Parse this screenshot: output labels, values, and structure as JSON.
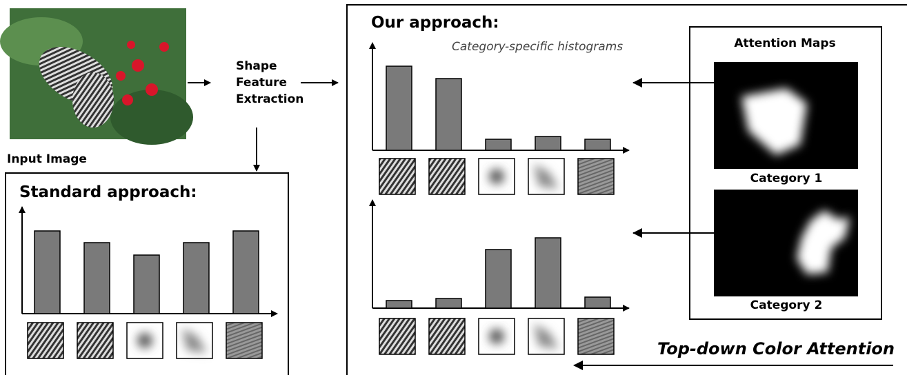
{
  "input": {
    "label": "Input Image"
  },
  "extraction": {
    "lines": [
      "Shape",
      "Feature",
      "Extraction"
    ]
  },
  "standard": {
    "title": "Standard approach:",
    "values": [
      120,
      103,
      85,
      103,
      120
    ]
  },
  "ours": {
    "title": "Our approach:",
    "subtitle": "Category-specific histograms",
    "histograms": [
      {
        "values": [
          122,
          104,
          16,
          20,
          16
        ]
      },
      {
        "values": [
          11,
          14,
          85,
          102,
          16
        ]
      }
    ]
  },
  "attention": {
    "title": "Attention Maps",
    "maps": [
      "Category 1",
      "Category 2"
    ],
    "caption": "Top-down Color Attention"
  }
}
